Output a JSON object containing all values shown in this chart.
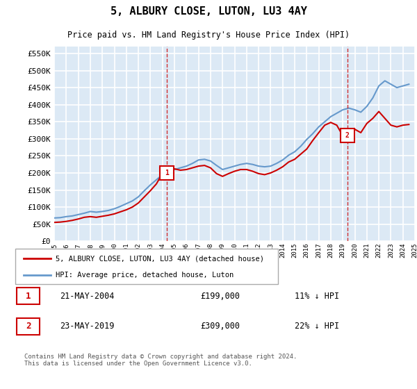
{
  "title": "5, ALBURY CLOSE, LUTON, LU3 4AY",
  "subtitle": "Price paid vs. HM Land Registry's House Price Index (HPI)",
  "background_color": "#dce9f5",
  "plot_bg_color": "#dce9f5",
  "grid_color": "#ffffff",
  "ylim": [
    0,
    570000
  ],
  "yticks": [
    0,
    50000,
    100000,
    150000,
    200000,
    250000,
    300000,
    350000,
    400000,
    450000,
    500000,
    550000
  ],
  "ytick_labels": [
    "£0",
    "£50K",
    "£100K",
    "£150K",
    "£200K",
    "£250K",
    "£300K",
    "£350K",
    "£400K",
    "£450K",
    "£500K",
    "£550K"
  ],
  "legend_label_red": "5, ALBURY CLOSE, LUTON, LU3 4AY (detached house)",
  "legend_label_blue": "HPI: Average price, detached house, Luton",
  "marker1_x": 2004.38,
  "marker1_y": 199000,
  "marker1_label": "1",
  "marker1_date": "21-MAY-2004",
  "marker1_price": "£199,000",
  "marker1_hpi": "11% ↓ HPI",
  "marker2_x": 2019.38,
  "marker2_y": 309000,
  "marker2_label": "2",
  "marker2_date": "23-MAY-2019",
  "marker2_price": "£309,000",
  "marker2_hpi": "22% ↓ HPI",
  "footer": "Contains HM Land Registry data © Crown copyright and database right 2024.\nThis data is licensed under the Open Government Licence v3.0.",
  "red_color": "#cc0000",
  "blue_color": "#6699cc",
  "marker_box_color": "#cc0000",
  "hpi_years": [
    1995,
    1995.5,
    1996,
    1996.5,
    1997,
    1997.5,
    1998,
    1998.5,
    1999,
    1999.5,
    2000,
    2000.5,
    2001,
    2001.5,
    2002,
    2002.5,
    2003,
    2003.5,
    2004,
    2004.5,
    2005,
    2005.5,
    2006,
    2006.5,
    2007,
    2007.5,
    2008,
    2008.5,
    2009,
    2009.5,
    2010,
    2010.5,
    2011,
    2011.5,
    2012,
    2012.5,
    2013,
    2013.5,
    2014,
    2014.5,
    2015,
    2015.5,
    2016,
    2016.5,
    2017,
    2017.5,
    2018,
    2018.5,
    2019,
    2019.5,
    2020,
    2020.5,
    2021,
    2021.5,
    2022,
    2022.5,
    2023,
    2023.5,
    2024,
    2024.5
  ],
  "hpi_values": [
    68000,
    69000,
    72000,
    74000,
    78000,
    82000,
    87000,
    85000,
    87000,
    90000,
    95000,
    102000,
    110000,
    118000,
    130000,
    148000,
    165000,
    180000,
    195000,
    205000,
    210000,
    215000,
    220000,
    228000,
    238000,
    240000,
    235000,
    222000,
    210000,
    215000,
    220000,
    225000,
    228000,
    225000,
    220000,
    218000,
    220000,
    228000,
    238000,
    252000,
    262000,
    278000,
    298000,
    315000,
    335000,
    350000,
    365000,
    375000,
    385000,
    390000,
    385000,
    378000,
    395000,
    420000,
    455000,
    470000,
    460000,
    450000,
    455000,
    460000
  ],
  "red_years": [
    1995,
    1995.5,
    1996,
    1996.5,
    1997,
    1997.5,
    1998,
    1998.5,
    1999,
    1999.5,
    2000,
    2000.5,
    2001,
    2001.5,
    2002,
    2002.5,
    2003,
    2003.5,
    2004,
    2004.5,
    2005,
    2005.5,
    2006,
    2006.5,
    2007,
    2007.5,
    2008,
    2008.5,
    2009,
    2009.5,
    2010,
    2010.5,
    2011,
    2011.5,
    2012,
    2012.5,
    2013,
    2013.5,
    2014,
    2014.5,
    2015,
    2015.5,
    2016,
    2016.5,
    2017,
    2017.5,
    2018,
    2018.5,
    2019,
    2019.5,
    2020,
    2020.5,
    2021,
    2021.5,
    2022,
    2022.5,
    2023,
    2023.5,
    2024,
    2024.5
  ],
  "red_values": [
    55000,
    56000,
    58000,
    61000,
    65000,
    70000,
    72000,
    70000,
    73000,
    76000,
    80000,
    86000,
    92000,
    100000,
    112000,
    130000,
    148000,
    168000,
    199000,
    208000,
    212000,
    208000,
    210000,
    215000,
    220000,
    222000,
    215000,
    198000,
    190000,
    198000,
    205000,
    210000,
    210000,
    205000,
    198000,
    195000,
    200000,
    208000,
    218000,
    232000,
    240000,
    255000,
    270000,
    295000,
    318000,
    340000,
    348000,
    340000,
    309000,
    318000,
    328000,
    318000,
    345000,
    360000,
    380000,
    360000,
    340000,
    335000,
    340000,
    342000
  ],
  "xmin": 1995,
  "xmax": 2025
}
